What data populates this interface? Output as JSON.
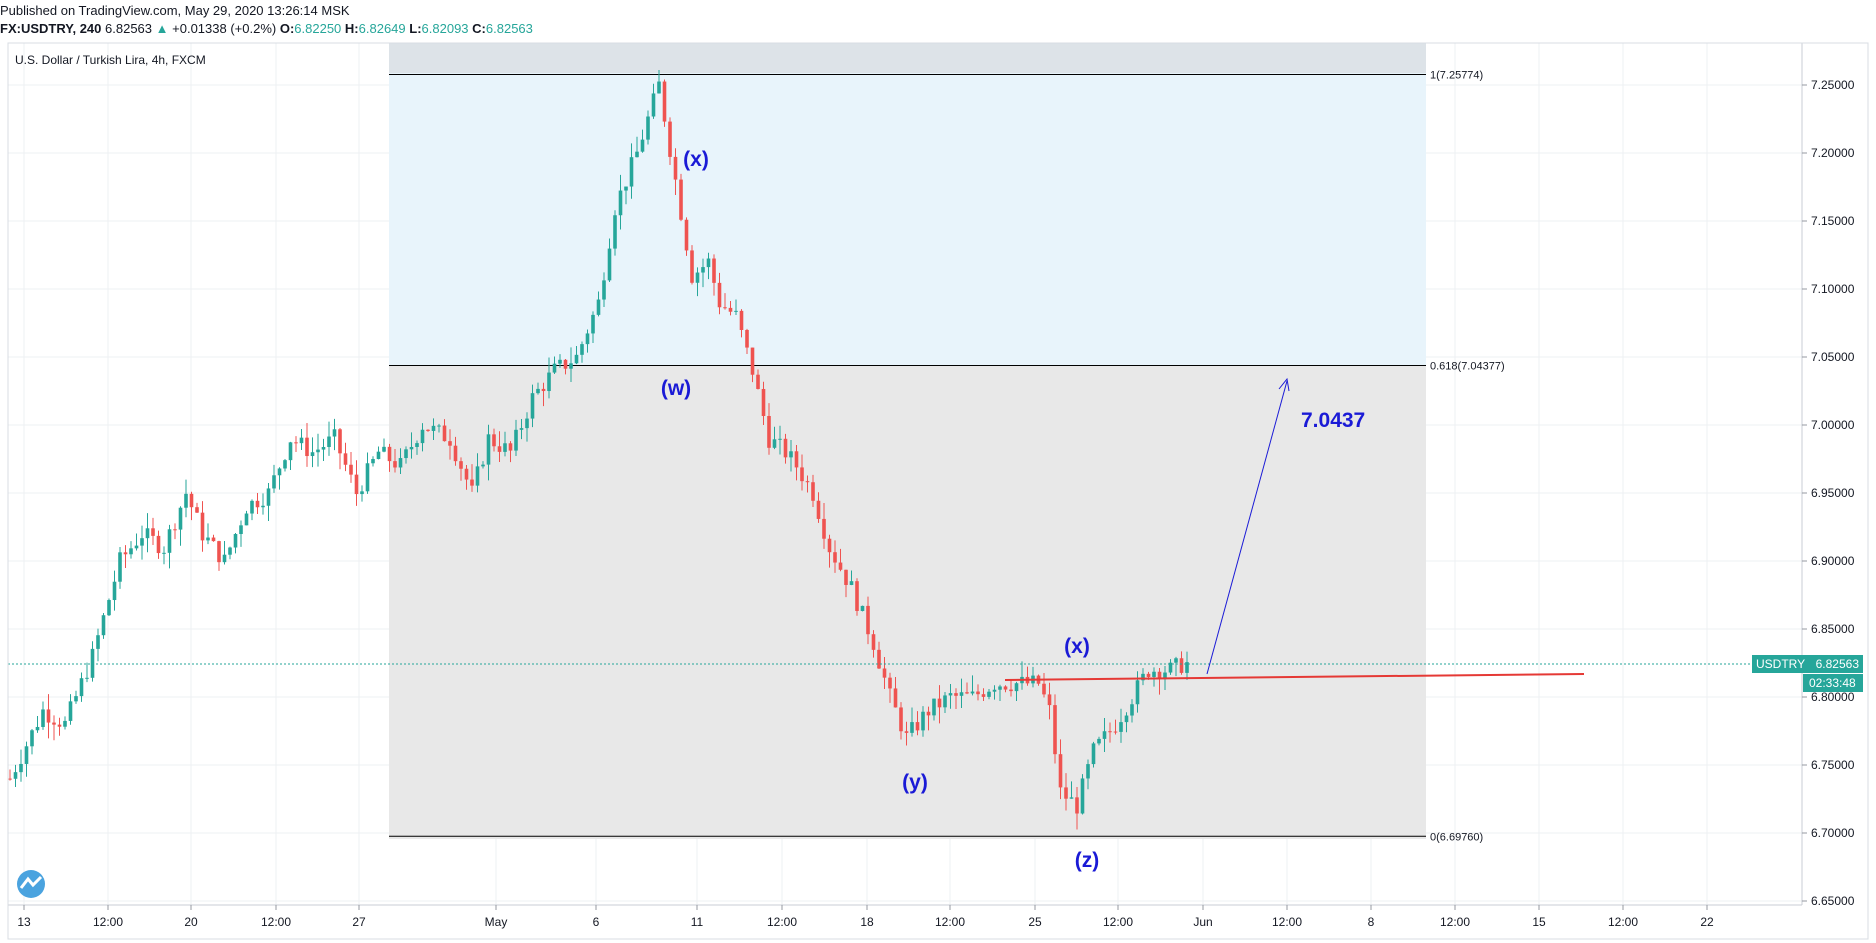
{
  "header": {
    "published": "Published on TradingView.com, May 29, 2020 13:26:14 MSK",
    "symbol": "FX:USDTRY, 240",
    "last": "6.82563",
    "change": "+0.01338 (+0.2%)",
    "open_label": "O:",
    "open": "6.82250",
    "high_label": "H:",
    "high": "6.82649",
    "low_label": "L:",
    "low": "6.82093",
    "close_label": "C:",
    "close": "6.82563"
  },
  "chart_title": "U.S. Dollar / Turkish Lira, 4h, FXCM",
  "price_badge": {
    "symbol": "USDTRY",
    "value": "6.82563",
    "countdown": "02:33:48"
  },
  "colors": {
    "up": "#26a69a",
    "down": "#ef5350",
    "annotation": "#1a1ad6",
    "trendline": "#e53935",
    "fib_upper_zone": "#e8f4fb",
    "fib_lower_zone": "#e8e8e8"
  },
  "chart_data": {
    "type": "candlestick",
    "ylim": [
      6.645,
      7.28
    ],
    "yticks": [
      "7.25000",
      "7.20000",
      "7.15000",
      "7.10000",
      "7.05000",
      "7.00000",
      "6.95000",
      "6.90000",
      "6.85000",
      "6.80000",
      "6.75000",
      "6.70000",
      "6.65000"
    ],
    "xticks": [
      "13",
      "12:00",
      "20",
      "12:00",
      "27",
      "May",
      "6",
      "11",
      "12:00",
      "18",
      "12:00",
      "25",
      "12:00",
      "Jun",
      "12:00",
      "8",
      "12:00",
      "15",
      "12:00",
      "22"
    ],
    "fib_levels": [
      {
        "label": "1(7.25774)",
        "value": 7.25774
      },
      {
        "label": "0.618(7.04377)",
        "value": 7.04377
      },
      {
        "label": "0(6.69760)",
        "value": 6.6976
      }
    ],
    "wave_labels": [
      "(x)",
      "(w)",
      "(y)",
      "(x)",
      "(z)"
    ],
    "target_label": "7.0437",
    "last_price": 6.82563,
    "trendline_value": 6.815,
    "path": [
      [
        0,
        6.74
      ],
      [
        6,
        6.79
      ],
      [
        10,
        6.78
      ],
      [
        15,
        6.83
      ],
      [
        20,
        6.9
      ],
      [
        24,
        6.92
      ],
      [
        28,
        6.91
      ],
      [
        32,
        6.95
      ],
      [
        35,
        6.92
      ],
      [
        39,
        6.9
      ],
      [
        43,
        6.94
      ],
      [
        47,
        6.95
      ],
      [
        51,
        6.99
      ],
      [
        55,
        6.98
      ],
      [
        59,
        6.99
      ],
      [
        63,
        6.95
      ],
      [
        67,
        6.98
      ],
      [
        71,
        6.97
      ],
      [
        75,
        7.0
      ],
      [
        80,
        6.99
      ],
      [
        84,
        6.95
      ],
      [
        87,
        6.99
      ],
      [
        91,
        6.98
      ],
      [
        95,
        7.02
      ],
      [
        99,
        7.04
      ],
      [
        103,
        7.05
      ],
      [
        107,
        7.09
      ],
      [
        110,
        7.16
      ],
      [
        114,
        7.2
      ],
      [
        118,
        7.25
      ],
      [
        121,
        7.18
      ],
      [
        124,
        7.11
      ],
      [
        127,
        7.12
      ],
      [
        129,
        7.09
      ],
      [
        132,
        7.08
      ],
      [
        135,
        7.04
      ],
      [
        138,
        6.99
      ],
      [
        141,
        6.98
      ],
      [
        143,
        6.97
      ],
      [
        146,
        6.95
      ],
      [
        149,
        6.91
      ],
      [
        153,
        6.88
      ],
      [
        157,
        6.84
      ],
      [
        160,
        6.8
      ],
      [
        163,
        6.77
      ],
      [
        167,
        6.79
      ],
      [
        171,
        6.8
      ],
      [
        175,
        6.8
      ],
      [
        179,
        6.81
      ],
      [
        183,
        6.81
      ],
      [
        187,
        6.81
      ],
      [
        189,
        6.79
      ],
      [
        191,
        6.73
      ],
      [
        194,
        6.72
      ],
      [
        197,
        6.76
      ],
      [
        201,
        6.78
      ],
      [
        204,
        6.8
      ],
      [
        207,
        6.82
      ],
      [
        211,
        6.82
      ],
      [
        214,
        6.82563
      ]
    ]
  }
}
